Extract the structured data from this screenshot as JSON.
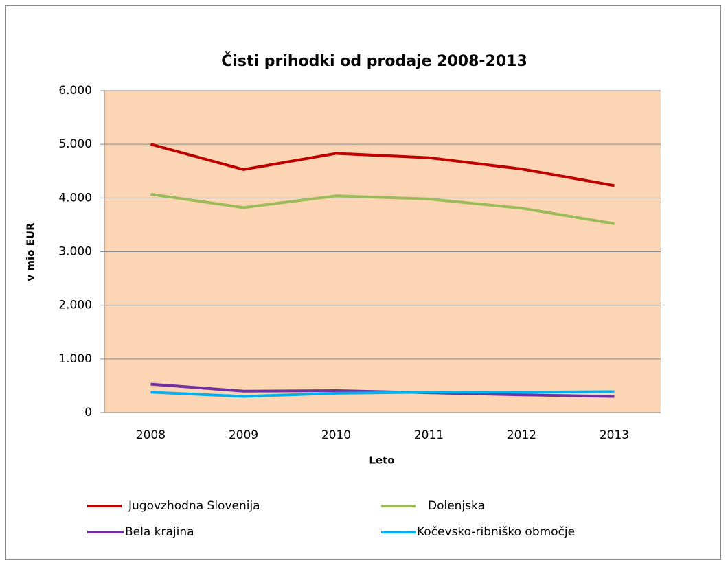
{
  "chart_data": {
    "type": "line",
    "title": "Čisti prihodki od prodaje 2008-2013",
    "x_label": "Leto",
    "y_label": "v mio EUR",
    "categories": [
      "2008",
      "2009",
      "2010",
      "2011",
      "2012",
      "2013"
    ],
    "series": [
      {
        "name": "Jugovzhodna Slovenija",
        "color": "#c00000",
        "values": [
          5000,
          4530,
          4830,
          4750,
          4540,
          4230
        ]
      },
      {
        "name": "Dolenjska",
        "color": "#9bbb59",
        "values": [
          4070,
          3820,
          4040,
          3980,
          3810,
          3520
        ]
      },
      {
        "name": "Bela krajina",
        "color": "#7030a0",
        "values": [
          530,
          400,
          410,
          370,
          330,
          300
        ]
      },
      {
        "name": "Kočevsko-ribniško območje",
        "color": "#00b0f0",
        "values": [
          380,
          300,
          360,
          380,
          380,
          390
        ]
      }
    ],
    "ylim": [
      0,
      6000
    ],
    "yticks": [
      0,
      {
        "value": 1000,
        "label": "1.000"
      },
      {
        "value": 2000,
        "label": "2.000"
      },
      {
        "value": 3000,
        "label": "3.000"
      },
      {
        "value": 4000,
        "label": "4.000"
      },
      {
        "value": 5000,
        "label": "5.000"
      },
      {
        "value": 6000,
        "label": "6.000"
      }
    ],
    "grid": true,
    "legend": "bottom",
    "plot_background": "#fcd5b5"
  }
}
